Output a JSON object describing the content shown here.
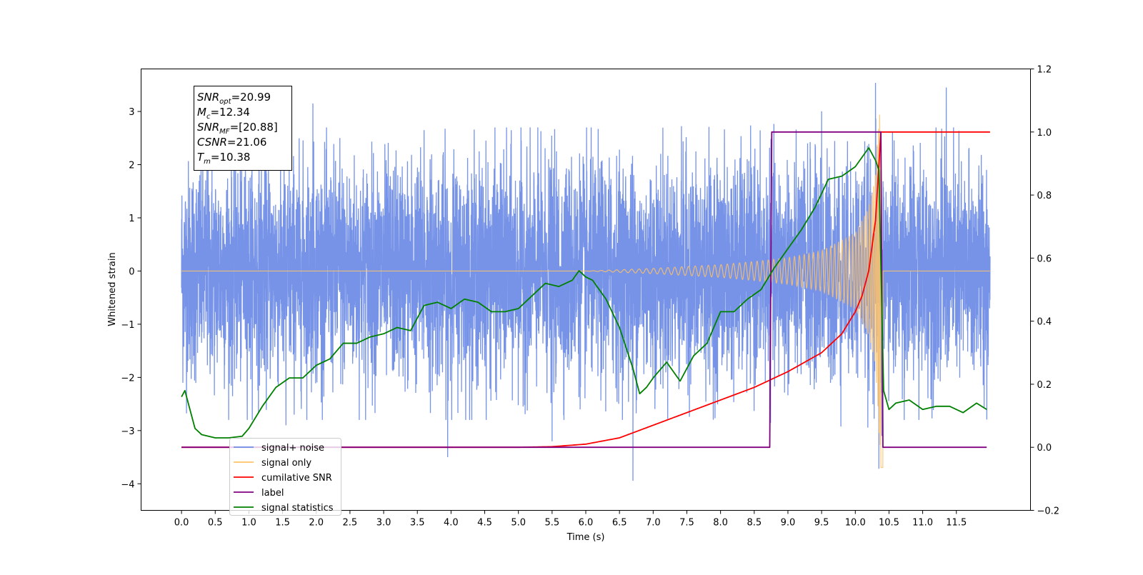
{
  "chart_data": {
    "type": "line",
    "title": "",
    "xlabel": "Time (s)",
    "ylabel": "Whitened strain",
    "ylabel_right": "",
    "xlim": [
      -0.6,
      12.6
    ],
    "ylim": [
      -4.5,
      3.8
    ],
    "ylim_right": [
      -0.2,
      1.2
    ],
    "grid": false,
    "legend_position": "lower-left",
    "x_ticks": [
      0.0,
      0.5,
      1.0,
      1.5,
      2.0,
      2.5,
      3.0,
      3.5,
      4.0,
      4.5,
      5.0,
      5.5,
      6.0,
      6.5,
      7.0,
      7.5,
      8.0,
      8.5,
      9.0,
      9.5,
      10.0,
      10.5,
      11.0,
      11.5
    ],
    "x_tick_labels": [
      "0.0",
      "0.5",
      "1.0",
      "1.5",
      "2.0",
      "2.5",
      "3.0",
      "3.5",
      "4.0",
      "4.5",
      "5.0",
      "5.5",
      "6.0",
      "6.5",
      "7.0",
      "7.5",
      "8.0",
      "8.5",
      "9.0",
      "9.5",
      "10.0",
      "10.5",
      "11.0",
      "11.5"
    ],
    "y_ticks_left": [
      -4,
      -3,
      -2,
      -1,
      0,
      1,
      2,
      3
    ],
    "y_tick_labels_left": [
      "−4",
      "−3",
      "−2",
      "−1",
      "0",
      "1",
      "2",
      "3"
    ],
    "y_ticks_right": [
      -0.2,
      0.0,
      0.2,
      0.4,
      0.6,
      0.8,
      1.0,
      1.2
    ],
    "y_tick_labels_right": [
      "−0.2",
      "0.0",
      "0.2",
      "0.4",
      "0.6",
      "0.8",
      "1.0",
      "1.2"
    ],
    "annotation": {
      "lines": [
        {
          "main": "SNR",
          "sub": "opt",
          "value": "=20.99"
        },
        {
          "main": "M",
          "sub": "c",
          "value": "=12.34"
        },
        {
          "main": "SNR",
          "sub": "MF",
          "value": "=[20.88]"
        },
        {
          "main": "CSNR",
          "sub": "",
          "value": "=21.06"
        },
        {
          "main": "T",
          "sub": "m",
          "value": "=10.38"
        }
      ]
    },
    "series": [
      {
        "name": "signal+ noise",
        "axis": "left",
        "color": "#6f8de6",
        "kind": "noise",
        "x_range": [
          0.0,
          12.0
        ],
        "typical_amplitude": 1.2,
        "peak_values": [
          {
            "x": 1.95,
            "y": 3.15
          },
          {
            "x": 2.35,
            "y": 2.5
          },
          {
            "x": 3.6,
            "y": 2.65
          },
          {
            "x": 3.95,
            "y": -3.5
          },
          {
            "x": 6.7,
            "y": -3.95
          },
          {
            "x": 9.5,
            "y": 2.95
          },
          {
            "x": 10.3,
            "y": 3.0
          },
          {
            "x": 10.35,
            "y": -3.6
          },
          {
            "x": 11.35,
            "y": 3.45
          },
          {
            "x": 5.5,
            "y": -3.2
          },
          {
            "x": 1.55,
            "y": -2.9
          }
        ]
      },
      {
        "name": "signal only",
        "axis": "left",
        "color": "#ffc266",
        "kind": "chirp",
        "start": 6.0,
        "merger": 10.38,
        "x_range": [
          0.0,
          12.0
        ],
        "envelope": [
          {
            "x": 6.0,
            "y": 0.0
          },
          {
            "x": 7.0,
            "y": 0.05
          },
          {
            "x": 8.0,
            "y": 0.12
          },
          {
            "x": 8.5,
            "y": 0.18
          },
          {
            "x": 9.0,
            "y": 0.25
          },
          {
            "x": 9.5,
            "y": 0.38
          },
          {
            "x": 10.0,
            "y": 0.72
          },
          {
            "x": 10.2,
            "y": 1.2
          },
          {
            "x": 10.3,
            "y": 1.8
          },
          {
            "x": 10.38,
            "y": 3.7
          }
        ]
      },
      {
        "name": "cumilative SNR",
        "axis": "right",
        "color": "#ff0000",
        "x": [
          0.0,
          5.0,
          5.5,
          6.0,
          6.5,
          7.0,
          7.5,
          8.0,
          8.5,
          9.0,
          9.5,
          9.8,
          10.0,
          10.1,
          10.2,
          10.3,
          10.38,
          10.45,
          12.0
        ],
        "values": [
          0.0,
          0.0,
          0.002,
          0.01,
          0.03,
          0.07,
          0.11,
          0.15,
          0.19,
          0.24,
          0.3,
          0.36,
          0.43,
          0.48,
          0.56,
          0.72,
          1.0,
          1.0,
          1.0
        ]
      },
      {
        "name": "label",
        "axis": "right",
        "color": "#800080",
        "x": [
          0.0,
          8.73,
          8.76,
          10.38,
          10.41,
          11.95
        ],
        "values": [
          0.0,
          0.0,
          1.0,
          1.0,
          0.0,
          0.0
        ]
      },
      {
        "name": "signal statistics",
        "axis": "right",
        "color": "#008000",
        "x": [
          0.0,
          0.05,
          0.1,
          0.2,
          0.3,
          0.5,
          0.7,
          0.9,
          1.0,
          1.2,
          1.4,
          1.6,
          1.8,
          2.0,
          2.2,
          2.4,
          2.6,
          2.8,
          3.0,
          3.2,
          3.4,
          3.6,
          3.8,
          4.0,
          4.2,
          4.4,
          4.6,
          4.8,
          5.0,
          5.2,
          5.4,
          5.6,
          5.8,
          5.9,
          6.0,
          6.1,
          6.3,
          6.5,
          6.7,
          6.8,
          6.9,
          7.0,
          7.2,
          7.4,
          7.6,
          7.8,
          8.0,
          8.2,
          8.4,
          8.6,
          8.8,
          9.0,
          9.2,
          9.4,
          9.6,
          9.8,
          10.0,
          10.1,
          10.2,
          10.3,
          10.35,
          10.42,
          10.5,
          10.6,
          10.8,
          11.0,
          11.2,
          11.4,
          11.6,
          11.8,
          11.95
        ],
        "values": [
          0.16,
          0.18,
          0.14,
          0.06,
          0.04,
          0.03,
          0.03,
          0.035,
          0.06,
          0.13,
          0.19,
          0.22,
          0.22,
          0.26,
          0.28,
          0.33,
          0.33,
          0.35,
          0.36,
          0.38,
          0.37,
          0.45,
          0.46,
          0.44,
          0.47,
          0.46,
          0.43,
          0.43,
          0.44,
          0.48,
          0.52,
          0.51,
          0.53,
          0.56,
          0.54,
          0.53,
          0.47,
          0.38,
          0.25,
          0.17,
          0.19,
          0.22,
          0.27,
          0.21,
          0.29,
          0.33,
          0.43,
          0.43,
          0.47,
          0.5,
          0.57,
          0.63,
          0.69,
          0.76,
          0.85,
          0.86,
          0.89,
          0.92,
          0.95,
          0.91,
          0.88,
          0.18,
          0.12,
          0.14,
          0.15,
          0.12,
          0.13,
          0.13,
          0.11,
          0.14,
          0.12
        ]
      }
    ]
  }
}
